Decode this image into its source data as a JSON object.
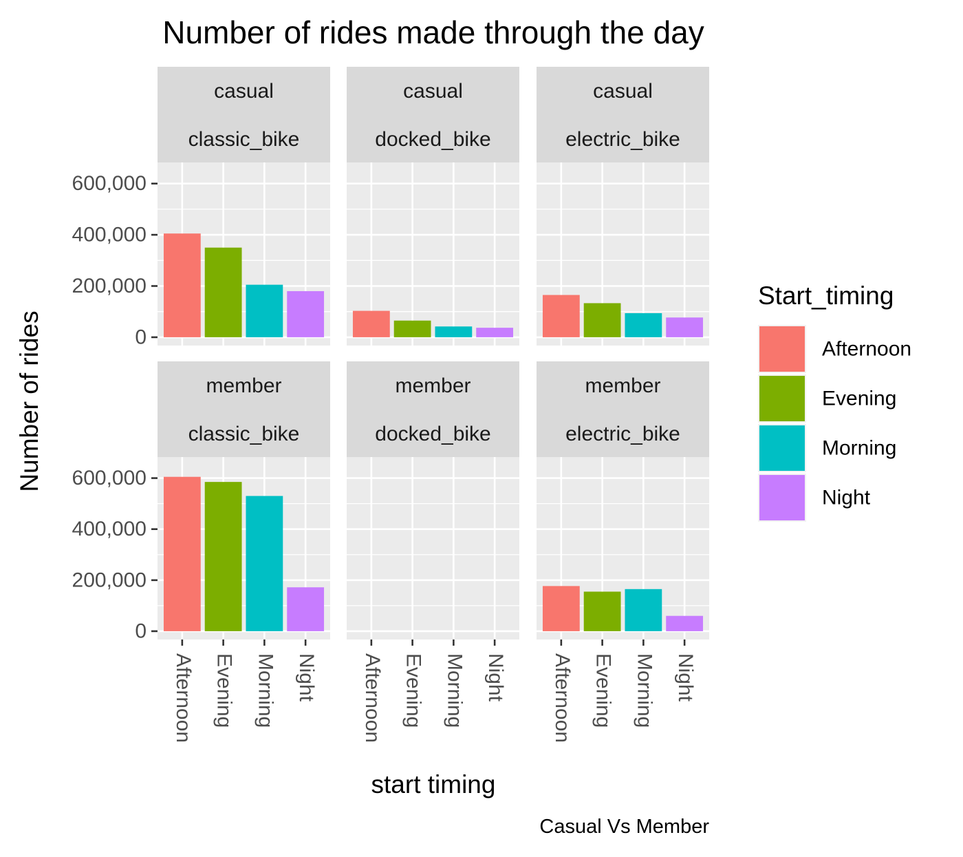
{
  "chart_data": {
    "type": "bar",
    "title": "Number of rides made through the day",
    "xlabel": "start timing",
    "ylabel": "Number of rides",
    "caption": "Casual Vs Member",
    "ylim": [
      0,
      650000
    ],
    "y_ticks": [
      0,
      200000,
      400000,
      600000
    ],
    "y_tick_labels": [
      "0",
      "200,000",
      "400,000",
      "600,000"
    ],
    "grid": true,
    "legend": {
      "title": "Start_timing",
      "position": "right",
      "entries": [
        "Afternoon",
        "Evening",
        "Morning",
        "Night"
      ]
    },
    "categories": [
      "Afternoon",
      "Evening",
      "Morning",
      "Night"
    ],
    "colors": {
      "Afternoon": "#F8766D",
      "Evening": "#7CAE00",
      "Morning": "#00BFC4",
      "Night": "#C77CFF"
    },
    "panel_background": "#EBEBEB",
    "strip_background": "#D9D9D9",
    "facet_rows": [
      "casual",
      "member"
    ],
    "facet_cols": [
      "classic_bike",
      "docked_bike",
      "electric_bike"
    ],
    "panels": [
      {
        "member_type": "casual",
        "bike_type": "classic_bike",
        "values": [
          405000,
          350000,
          205000,
          180000
        ]
      },
      {
        "member_type": "casual",
        "bike_type": "docked_bike",
        "values": [
          103000,
          65000,
          42000,
          37000
        ]
      },
      {
        "member_type": "casual",
        "bike_type": "electric_bike",
        "values": [
          165000,
          133000,
          94000,
          77000
        ]
      },
      {
        "member_type": "member",
        "bike_type": "classic_bike",
        "values": [
          605000,
          585000,
          530000,
          172000
        ]
      },
      {
        "member_type": "member",
        "bike_type": "docked_bike",
        "values": [
          0,
          0,
          0,
          0
        ]
      },
      {
        "member_type": "member",
        "bike_type": "electric_bike",
        "values": [
          177000,
          155000,
          165000,
          60000
        ]
      }
    ]
  }
}
